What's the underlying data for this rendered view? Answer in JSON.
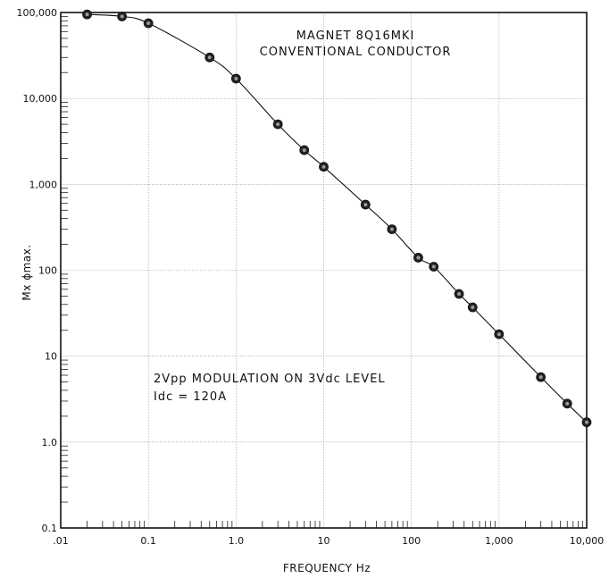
{
  "chart_data": {
    "type": "line",
    "title_lines": [
      "MAGNET  8Q16MKI",
      "CONVENTIONAL  CONDUCTOR"
    ],
    "annotation_lines": [
      "2Vpp MODULATION ON 3Vdc LEVEL",
      "Idc = 120A"
    ],
    "xlabel": "FREQUENCY Hz",
    "ylabel": "Mx ϕmax.",
    "x_scale": "log",
    "y_scale": "log",
    "xlim": [
      0.01,
      10000
    ],
    "ylim": [
      0.1,
      100000
    ],
    "x_tick_values": [
      0.01,
      0.1,
      1,
      10,
      100,
      1000,
      10000
    ],
    "x_tick_labels": [
      ".01",
      "0.1",
      "1.0",
      "10",
      "100",
      "1,000",
      "10,000"
    ],
    "y_tick_values": [
      0.1,
      1,
      10,
      100,
      1000,
      10000,
      100000
    ],
    "y_tick_labels": [
      "0.1",
      "1.0",
      "10",
      "100",
      "1,000",
      "10,000",
      "100,000"
    ],
    "grid": true,
    "series": [
      {
        "x": [
          0.02,
          0.05,
          0.1,
          0.5,
          1,
          3,
          6,
          10,
          30,
          60,
          120,
          180,
          350,
          500,
          1000,
          3000,
          6000,
          10000
        ],
        "y": [
          95000,
          90000,
          75000,
          30000,
          17000,
          5000,
          2500,
          1600,
          580,
          300,
          140,
          110,
          53,
          37,
          18,
          5.7,
          2.8,
          1.7
        ]
      }
    ],
    "marker": "circle",
    "colors": {
      "line": "#111111",
      "marker": "#222222",
      "marker_center": "#9a9a9a",
      "grid": "#9a9a9a"
    }
  }
}
